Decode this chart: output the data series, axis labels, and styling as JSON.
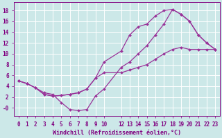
{
  "xlabel": "Windchill (Refroidissement éolien,°C)",
  "background_color": "#cce8e8",
  "grid_color": "#ffffff",
  "line_color": "#993399",
  "line1_x": [
    0,
    1,
    2,
    3,
    4,
    5,
    6,
    7,
    8,
    9,
    10,
    12,
    13,
    14,
    15,
    16,
    17,
    18,
    19,
    20,
    21,
    22,
    23
  ],
  "line1_y": [
    5.0,
    4.5,
    3.7,
    2.5,
    2.2,
    2.3,
    2.5,
    2.8,
    3.5,
    5.5,
    8.5,
    10.5,
    13.5,
    15.0,
    15.5,
    17.0,
    18.0,
    18.2,
    17.3,
    16.0,
    13.5,
    12.0,
    10.8
  ],
  "line2_x": [
    0,
    1,
    2,
    3,
    4,
    5,
    6,
    7,
    8,
    9,
    10,
    12,
    13,
    14,
    15,
    16,
    17,
    18,
    19,
    20,
    21,
    22,
    23
  ],
  "line2_y": [
    5.0,
    4.5,
    3.7,
    2.8,
    2.5,
    1.0,
    -0.3,
    -0.5,
    -0.3,
    2.2,
    3.5,
    7.5,
    8.5,
    10.0,
    11.5,
    13.5,
    15.5,
    18.2,
    17.3,
    16.0,
    13.5,
    12.0,
    10.8
  ],
  "line3_x": [
    0,
    1,
    2,
    3,
    4,
    5,
    6,
    7,
    8,
    9,
    10,
    12,
    13,
    14,
    15,
    16,
    17,
    18,
    19,
    20,
    21,
    22,
    23
  ],
  "line3_y": [
    5.0,
    4.5,
    3.7,
    2.5,
    2.2,
    2.3,
    2.5,
    2.8,
    3.5,
    5.5,
    6.5,
    6.5,
    7.0,
    7.5,
    8.0,
    9.0,
    10.0,
    10.8,
    11.2,
    10.8,
    10.8,
    10.8,
    10.8
  ],
  "xlim": [
    -0.5,
    23.5
  ],
  "ylim": [
    -1.5,
    19.5
  ],
  "xticks": [
    0,
    1,
    2,
    3,
    4,
    5,
    6,
    7,
    8,
    9,
    10,
    12,
    13,
    14,
    15,
    16,
    17,
    18,
    19,
    20,
    21,
    22,
    23
  ],
  "yticks": [
    0,
    2,
    4,
    6,
    8,
    10,
    12,
    14,
    16,
    18
  ],
  "tick_fontsize": 5.5,
  "xlabel_fontsize": 6.0,
  "marker": "D",
  "marker_size": 2.0,
  "line_width": 0.9
}
